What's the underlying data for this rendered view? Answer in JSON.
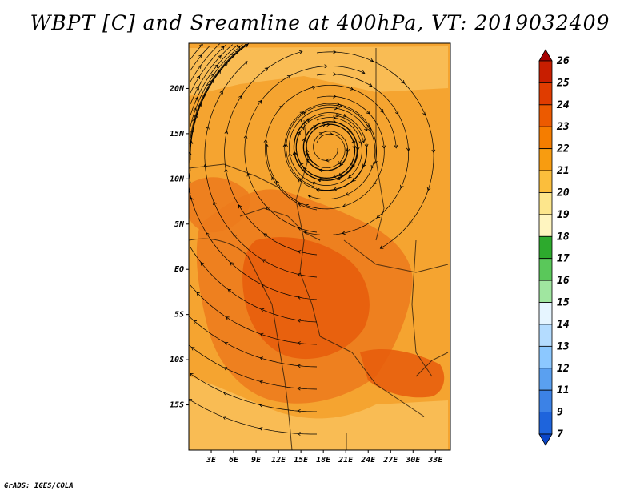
{
  "title": "WBPT [C] and Sreamline at 400hPa, VT: 2019032409",
  "credit": "GrADS: IGES/COLA",
  "map": {
    "lon_range": [
      0,
      35
    ],
    "lat_range": [
      -20,
      25
    ],
    "lon_ticks": [
      "3E",
      "6E",
      "9E",
      "12E",
      "15E",
      "18E",
      "21E",
      "24E",
      "27E",
      "30E",
      "33E"
    ],
    "lat_ticks": [
      "20N",
      "15N",
      "10N",
      "5N",
      "EQ",
      "5S",
      "10S",
      "15S"
    ]
  },
  "colorbar": {
    "levels": [
      "26",
      "25",
      "24",
      "23",
      "22",
      "21",
      "20",
      "19",
      "18",
      "17",
      "16",
      "15",
      "14",
      "13",
      "12",
      "11",
      "9",
      "7"
    ],
    "colors": [
      "#a50000",
      "#c81e00",
      "#e03c00",
      "#ec5a00",
      "#f57d00",
      "#f89c10",
      "#fbbe3c",
      "#fde68c",
      "#fff5c0",
      "#2daa2d",
      "#5ac85a",
      "#a0e6a0",
      "#e6f5ff",
      "#b4dcff",
      "#8cc8ff",
      "#5aa0f0",
      "#3c82e6",
      "#1e64dc",
      "#0a46c8"
    ]
  },
  "colors": {
    "field_base": "#f5a430",
    "field_warm": "#ec7a1c",
    "field_hot": "#e65c0c",
    "field_light": "#f9c15a",
    "streamline": "#000000",
    "border": "#2a1a0a"
  }
}
